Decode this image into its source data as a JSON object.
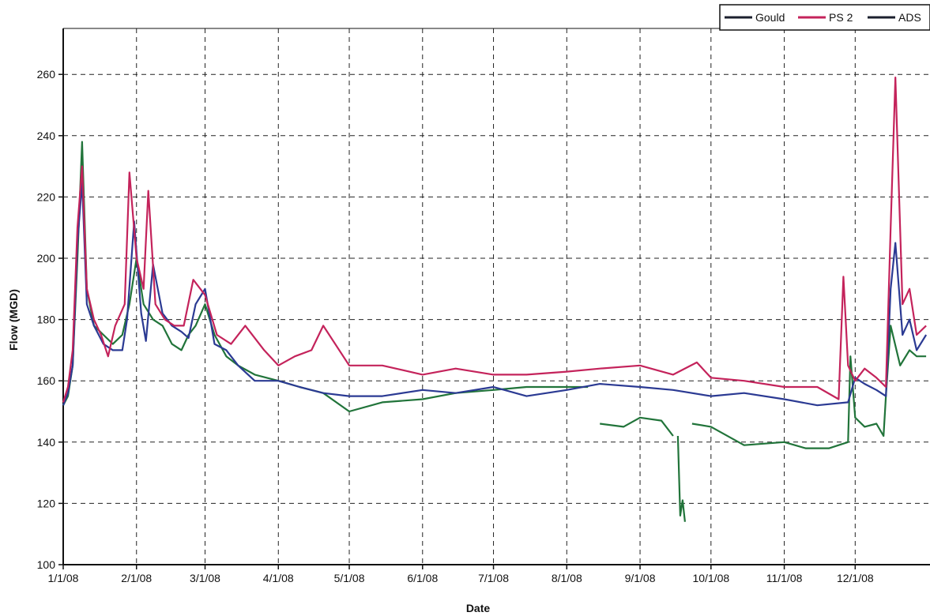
{
  "chart_data": {
    "type": "line",
    "xlabel": "Date",
    "ylabel": "Flow (MGD)",
    "xlim": [
      "2008-01-01",
      "2008-12-31"
    ],
    "ylim": [
      100,
      275
    ],
    "x_ticks": [
      "1/1/08",
      "2/1/08",
      "3/1/08",
      "4/1/08",
      "5/1/08",
      "6/1/08",
      "7/1/08",
      "8/1/08",
      "9/1/08",
      "10/1/08",
      "11/1/08",
      "12/1/08"
    ],
    "y_ticks": [
      100,
      120,
      140,
      160,
      180,
      200,
      220,
      240,
      260
    ],
    "grid": true,
    "legend_position": "top-right",
    "series": [
      {
        "name": "Gould",
        "color": "#2b3a93",
        "x": [
          "2008-01-01",
          "2008-01-03",
          "2008-01-05",
          "2008-01-07",
          "2008-01-09",
          "2008-01-11",
          "2008-01-14",
          "2008-01-18",
          "2008-01-22",
          "2008-01-26",
          "2008-01-28",
          "2008-01-31",
          "2008-02-03",
          "2008-02-05",
          "2008-02-08",
          "2008-02-12",
          "2008-02-16",
          "2008-02-20",
          "2008-02-23",
          "2008-02-26",
          "2008-03-01",
          "2008-03-05",
          "2008-03-10",
          "2008-03-15",
          "2008-03-22",
          "2008-04-01",
          "2008-04-10",
          "2008-04-20",
          "2008-05-01",
          "2008-05-15",
          "2008-06-01",
          "2008-06-15",
          "2008-07-01",
          "2008-07-15",
          "2008-08-01",
          "2008-08-15",
          "2008-09-01",
          "2008-09-15",
          "2008-10-01",
          "2008-10-15",
          "2008-11-01",
          "2008-11-15",
          "2008-11-28",
          "2008-12-01",
          "2008-12-05",
          "2008-12-10",
          "2008-12-14",
          "2008-12-16",
          "2008-12-18",
          "2008-12-21",
          "2008-12-24",
          "2008-12-27",
          "2008-12-31"
        ],
        "y": [
          152,
          156,
          165,
          205,
          225,
          185,
          178,
          172,
          170,
          170,
          180,
          212,
          182,
          173,
          198,
          182,
          178,
          176,
          174,
          185,
          190,
          172,
          170,
          165,
          160,
          160,
          158,
          156,
          155,
          155,
          157,
          156,
          158,
          155,
          157,
          159,
          158,
          157,
          155,
          156,
          154,
          152,
          153,
          161,
          159,
          157,
          155,
          190,
          205,
          175,
          180,
          170,
          175
        ]
      },
      {
        "name": "PS 2",
        "color": "#c4235b",
        "x": [
          "2008-01-01",
          "2008-01-03",
          "2008-01-05",
          "2008-01-07",
          "2008-01-09",
          "2008-01-11",
          "2008-01-14",
          "2008-01-17",
          "2008-01-20",
          "2008-01-23",
          "2008-01-27",
          "2008-01-29",
          "2008-02-01",
          "2008-02-04",
          "2008-02-06",
          "2008-02-09",
          "2008-02-13",
          "2008-02-17",
          "2008-02-21",
          "2008-02-25",
          "2008-03-01",
          "2008-03-06",
          "2008-03-12",
          "2008-03-18",
          "2008-03-26",
          "2008-04-01",
          "2008-04-08",
          "2008-04-15",
          "2008-04-20",
          "2008-05-01",
          "2008-05-15",
          "2008-06-01",
          "2008-06-15",
          "2008-07-01",
          "2008-07-15",
          "2008-08-01",
          "2008-08-15",
          "2008-09-01",
          "2008-09-15",
          "2008-09-25",
          "2008-10-01",
          "2008-10-15",
          "2008-11-01",
          "2008-11-15",
          "2008-11-24",
          "2008-11-26",
          "2008-11-28",
          "2008-12-01",
          "2008-12-05",
          "2008-12-10",
          "2008-12-14",
          "2008-12-16",
          "2008-12-18",
          "2008-12-21",
          "2008-12-24",
          "2008-12-27",
          "2008-12-31"
        ],
        "y": [
          153,
          158,
          170,
          210,
          230,
          190,
          180,
          175,
          168,
          178,
          185,
          228,
          200,
          190,
          222,
          185,
          180,
          178,
          178,
          193,
          188,
          175,
          172,
          178,
          170,
          165,
          168,
          170,
          178,
          165,
          165,
          162,
          164,
          162,
          162,
          163,
          164,
          165,
          162,
          166,
          161,
          160,
          158,
          158,
          154,
          194,
          165,
          160,
          164,
          161,
          158,
          210,
          259,
          185,
          190,
          175,
          178
        ]
      },
      {
        "name": "ADS",
        "color": "#21743a",
        "x": [
          "2008-01-01",
          "2008-01-03",
          "2008-01-05",
          "2008-01-07",
          "2008-01-09",
          "2008-01-11",
          "2008-01-14",
          "2008-01-18",
          "2008-01-22",
          "2008-01-26",
          "2008-01-29",
          "2008-02-01",
          "2008-02-04",
          "2008-02-08",
          "2008-02-12",
          "2008-02-16",
          "2008-02-20",
          "2008-02-23",
          "2008-02-26",
          "2008-03-01",
          "2008-03-05",
          "2008-03-10",
          "2008-03-15",
          "2008-03-22",
          "2008-04-01",
          "2008-04-10",
          "2008-04-20",
          "2008-05-01",
          "2008-05-15",
          "2008-06-01",
          "2008-06-15",
          "2008-07-01",
          "2008-07-15",
          "2008-08-01",
          "2008-08-10",
          null,
          "2008-08-15",
          "2008-08-25",
          "2008-09-01",
          "2008-09-10",
          "2008-09-15",
          null,
          "2008-09-17",
          "2008-09-18",
          "2008-09-19",
          "2008-09-20",
          "2008-09-21",
          null,
          "2008-09-23",
          "2008-10-01",
          "2008-10-15",
          "2008-11-01",
          "2008-11-10",
          "2008-11-20",
          "2008-11-28",
          "2008-11-29",
          "2008-12-01",
          "2008-12-05",
          "2008-12-10",
          "2008-12-13",
          "2008-12-14",
          "2008-12-16",
          "2008-12-20",
          "2008-12-24",
          "2008-12-27",
          "2008-12-31"
        ],
        "y": [
          152,
          155,
          165,
          200,
          238,
          190,
          178,
          175,
          172,
          175,
          185,
          200,
          185,
          180,
          178,
          172,
          170,
          175,
          178,
          185,
          175,
          168,
          165,
          162,
          160,
          158,
          156,
          150,
          153,
          154,
          156,
          157,
          158,
          158,
          158,
          null,
          146,
          145,
          148,
          147,
          142,
          null,
          142,
          116,
          121,
          114,
          null,
          null,
          146,
          145,
          139,
          140,
          138,
          138,
          140,
          168,
          148,
          145,
          146,
          142,
          155,
          178,
          165,
          170,
          168,
          168
        ]
      }
    ]
  },
  "legend": {
    "items": [
      {
        "label": "Gould",
        "color": "#1b1f2e"
      },
      {
        "label": "PS 2",
        "color": "#c4235b"
      },
      {
        "label": "ADS",
        "color": "#1b1f2e"
      }
    ]
  }
}
